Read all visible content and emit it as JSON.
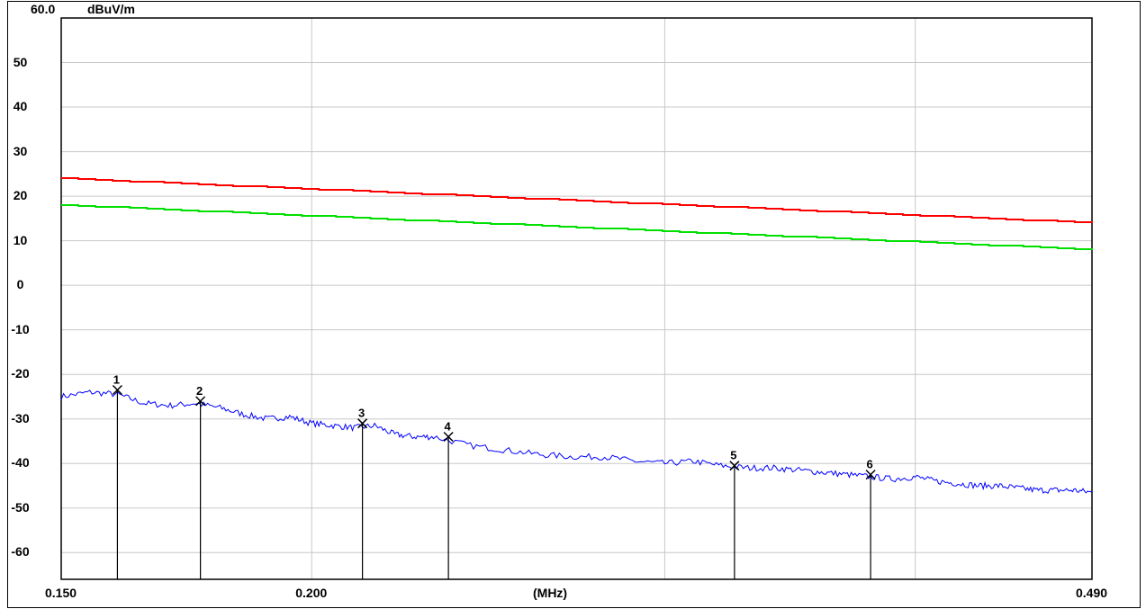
{
  "chart_data": {
    "type": "line",
    "y_unit": "dBuV/m",
    "y_top_label": "60.0",
    "x_unit_label": "(MHz)",
    "ylim": [
      -66,
      60
    ],
    "xlim": [
      0.15,
      0.49
    ],
    "x_scale": "log",
    "y_ticks": [
      50,
      40,
      30,
      20,
      10,
      0,
      -10,
      -20,
      -30,
      -40,
      -50,
      -60
    ],
    "x_tick_labels": [
      {
        "value": 0.15,
        "label": "0.150"
      },
      {
        "value": 0.2,
        "label": "0.200"
      },
      {
        "value": 0.49,
        "label": "0.490"
      }
    ],
    "x_gridlines": [
      0.15,
      0.2,
      0.3,
      0.4,
      0.49
    ],
    "grid": true,
    "series": [
      {
        "color": "#ff0000",
        "x": [
          0.15,
          0.49
        ],
        "y": [
          24.0,
          14.0
        ]
      },
      {
        "color": "#00e000",
        "x": [
          0.15,
          0.49
        ],
        "y": [
          18.0,
          8.0
        ]
      },
      {
        "color": "#0000ff",
        "x": [
          0.15,
          0.155,
          0.16,
          0.165,
          0.17,
          0.175,
          0.18,
          0.185,
          0.19,
          0.195,
          0.2,
          0.205,
          0.21,
          0.215,
          0.22,
          0.225,
          0.23,
          0.24,
          0.25,
          0.26,
          0.27,
          0.28,
          0.29,
          0.3,
          0.31,
          0.32,
          0.33,
          0.34,
          0.35,
          0.36,
          0.37,
          0.38,
          0.39,
          0.4,
          0.41,
          0.42,
          0.43,
          0.44,
          0.45,
          0.46,
          0.47,
          0.48,
          0.49
        ],
        "y": [
          -25.0,
          -24.0,
          -24.5,
          -26.5,
          -27.0,
          -26.5,
          -27.5,
          -29.0,
          -30.0,
          -29.5,
          -31.0,
          -31.5,
          -32.0,
          -31.5,
          -33.5,
          -34.0,
          -34.0,
          -36.0,
          -37.0,
          -38.0,
          -38.5,
          -38.5,
          -39.5,
          -40.0,
          -39.5,
          -40.5,
          -41.0,
          -41.0,
          -41.5,
          -42.0,
          -42.5,
          -43.0,
          -43.5,
          -43.0,
          -44.0,
          -44.5,
          -45.0,
          -45.0,
          -45.5,
          -46.0,
          -46.0,
          -46.0,
          -46.5
        ]
      }
    ],
    "markers": [
      {
        "label": "1",
        "x": 0.16,
        "y": -23.5
      },
      {
        "label": "2",
        "x": 0.176,
        "y": -26.0
      },
      {
        "label": "3",
        "x": 0.212,
        "y": -31.0
      },
      {
        "label": "4",
        "x": 0.234,
        "y": -34.0
      },
      {
        "label": "5",
        "x": 0.325,
        "y": -40.5
      },
      {
        "label": "6",
        "x": 0.38,
        "y": -42.5
      }
    ]
  }
}
